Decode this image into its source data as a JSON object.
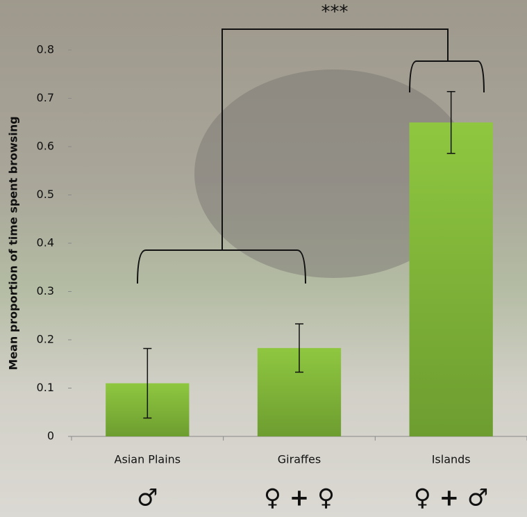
{
  "chart_data": {
    "type": "bar",
    "y_label": "Mean proportion of time spent browsing",
    "categories": [
      "Asian Plains",
      "Giraffes",
      "Islands"
    ],
    "values": [
      0.11,
      0.183,
      0.65
    ],
    "errors": [
      0.072,
      0.05,
      0.064
    ],
    "color": "#80b43a",
    "ylim": [
      0,
      0.8
    ],
    "yticks": [
      0,
      0.1,
      0.2,
      0.3,
      0.4,
      0.5,
      0.6,
      0.7,
      0.8
    ],
    "significance": "***",
    "group_symbols": [
      "♂",
      "♀ + ♀",
      "♀ + ♂"
    ]
  }
}
